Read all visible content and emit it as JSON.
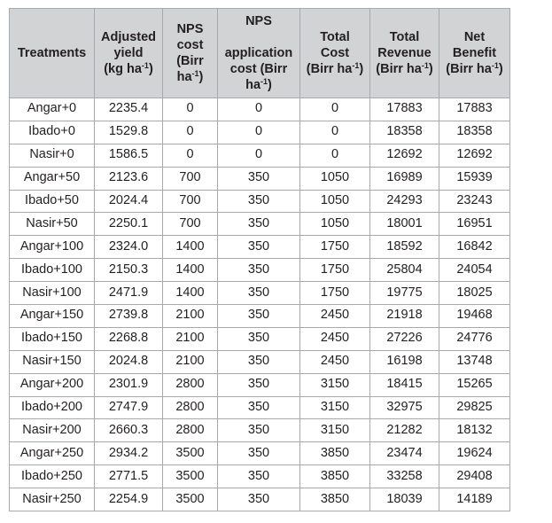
{
  "table": {
    "headers": [
      [
        {
          "t": "Treatments"
        }
      ],
      [
        {
          "t": "Adjusted"
        },
        {
          "t": "yield"
        },
        {
          "t": "(kg ha",
          "s": "-1",
          "a": ")"
        }
      ],
      [
        {
          "t": "NPS"
        },
        {
          "t": "cost"
        },
        {
          "t": "(Birr"
        },
        {
          "t": "ha",
          "s": "-1",
          "a": ")"
        }
      ],
      [
        {
          "t": "NPS"
        },
        {
          "t": ""
        },
        {
          "t": "application"
        },
        {
          "t": "cost (Birr"
        },
        {
          "t": "ha",
          "s": "-1",
          "a": ")"
        }
      ],
      [
        {
          "t": "Total"
        },
        {
          "t": "Cost"
        },
        {
          "t": "(Birr ha",
          "s": "-1",
          "a": ")"
        }
      ],
      [
        {
          "t": "Total"
        },
        {
          "t": "Revenue"
        },
        {
          "t": "(Birr ha",
          "s": "-1",
          "a": ")"
        }
      ],
      [
        {
          "t": "Net"
        },
        {
          "t": "Benefit"
        },
        {
          "t": "(Birr ha",
          "s": "-1",
          "a": ")"
        }
      ]
    ],
    "rows": [
      [
        "Angar+0",
        "2235.4",
        "0",
        "0",
        "0",
        "17883",
        "17883"
      ],
      [
        "Ibado+0",
        "1529.8",
        "0",
        "0",
        "0",
        "18358",
        "18358"
      ],
      [
        "Nasir+0",
        "1586.5",
        "0",
        "0",
        "0",
        "12692",
        "12692"
      ],
      [
        "Angar+50",
        "2123.6",
        "700",
        "350",
        "1050",
        "16989",
        "15939"
      ],
      [
        "Ibado+50",
        "2024.4",
        "700",
        "350",
        "1050",
        "24293",
        "23243"
      ],
      [
        "Nasir+50",
        "2250.1",
        "700",
        "350",
        "1050",
        "18001",
        "16951"
      ],
      [
        "Angar+100",
        "2324.0",
        "1400",
        "350",
        "1750",
        "18592",
        "16842"
      ],
      [
        "Ibado+100",
        "2150.3",
        "1400",
        "350",
        "1750",
        "25804",
        "24054"
      ],
      [
        "Nasir+100",
        "2471.9",
        "1400",
        "350",
        "1750",
        "19775",
        "18025"
      ],
      [
        "Angar+150",
        "2739.8",
        "2100",
        "350",
        "2450",
        "21918",
        "19468"
      ],
      [
        "Ibado+150",
        "2268.8",
        "2100",
        "350",
        "2450",
        "27226",
        "24776"
      ],
      [
        "Nasir+150",
        "2024.8",
        "2100",
        "350",
        "2450",
        "16198",
        "13748"
      ],
      [
        "Angar+200",
        "2301.9",
        "2800",
        "350",
        "3150",
        "18415",
        "15265"
      ],
      [
        "Ibado+200",
        "2747.9",
        "2800",
        "350",
        "3150",
        "32975",
        "29825"
      ],
      [
        "Nasir+200",
        "2660.3",
        "2800",
        "350",
        "3150",
        "21282",
        "18132"
      ],
      [
        "Angar+250",
        "2934.2",
        "3500",
        "350",
        "3850",
        "23474",
        "19624"
      ],
      [
        "Ibado+250",
        "2771.5",
        "3500",
        "350",
        "3850",
        "33258",
        "29408"
      ],
      [
        "Nasir+250",
        "2254.9",
        "3500",
        "350",
        "3850",
        "18039",
        "14189"
      ]
    ]
  }
}
